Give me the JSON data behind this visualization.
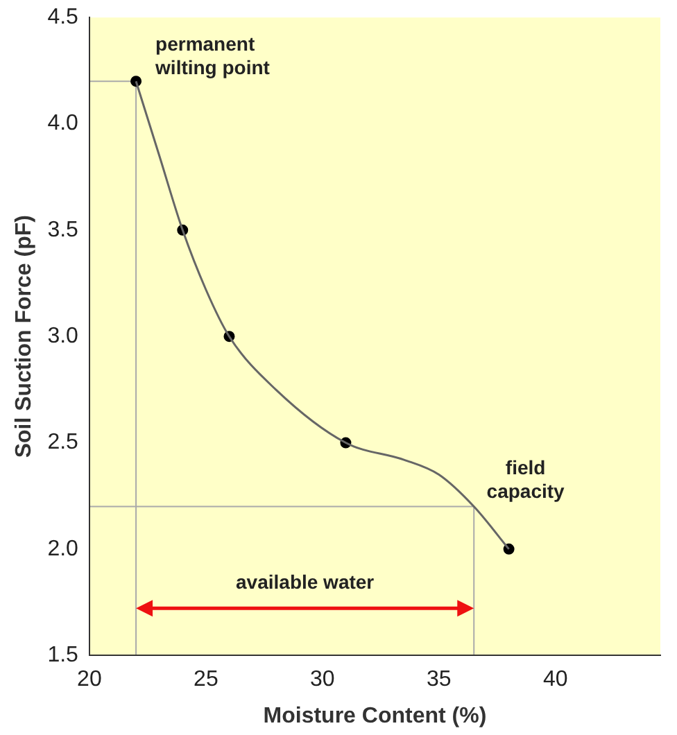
{
  "chart_data": {
    "type": "line",
    "xlabel": "Moisture Content (%)",
    "ylabel": "Soil Suction Force (pF)",
    "xlim": [
      20,
      44.5
    ],
    "xticks": [
      20,
      25,
      30,
      35,
      40
    ],
    "ylim": [
      1.5,
      4.5
    ],
    "yticks": [
      1.5,
      {
        "value": 2,
        "label": "2.0"
      },
      2.5,
      {
        "value": 3,
        "label": "3.0"
      },
      3.5,
      {
        "value": 4,
        "label": "4.0"
      },
      4.5
    ],
    "grid": false,
    "legend": false,
    "series": [
      {
        "color": "#666666",
        "marker": "none",
        "x": [
          22,
          23,
          24,
          25,
          26,
          28,
          31,
          33.5,
          35,
          36.5,
          38
        ],
        "values": [
          4.2,
          3.85,
          3.5,
          3.22,
          3.0,
          2.75,
          2.5,
          2.42,
          2.35,
          2.2,
          2.0
        ]
      },
      {
        "type": "scatter",
        "color": "#000000",
        "marker": "circle",
        "x": [
          22,
          24,
          26,
          31,
          38
        ],
        "values": [
          4.2,
          3.5,
          3.0,
          2.5,
          2.0
        ]
      }
    ],
    "ref_lines": [
      {
        "axis": "y",
        "value": 4.2,
        "color": "#aaaaaa"
      },
      {
        "axis": "y",
        "value": 2.2,
        "color": "#aaaaaa"
      },
      {
        "axis": "x",
        "value": 22,
        "color": "#aaaaaa"
      },
      {
        "axis": "x",
        "value": 36.5,
        "color": "#aaaaaa"
      }
    ],
    "annotations": [
      {
        "text": "permanent\nwilting point",
        "x": 22,
        "y": 4.2
      },
      {
        "text": "field\ncapacity",
        "x": 38,
        "y": 2.0
      },
      "available water"
    ]
  }
}
